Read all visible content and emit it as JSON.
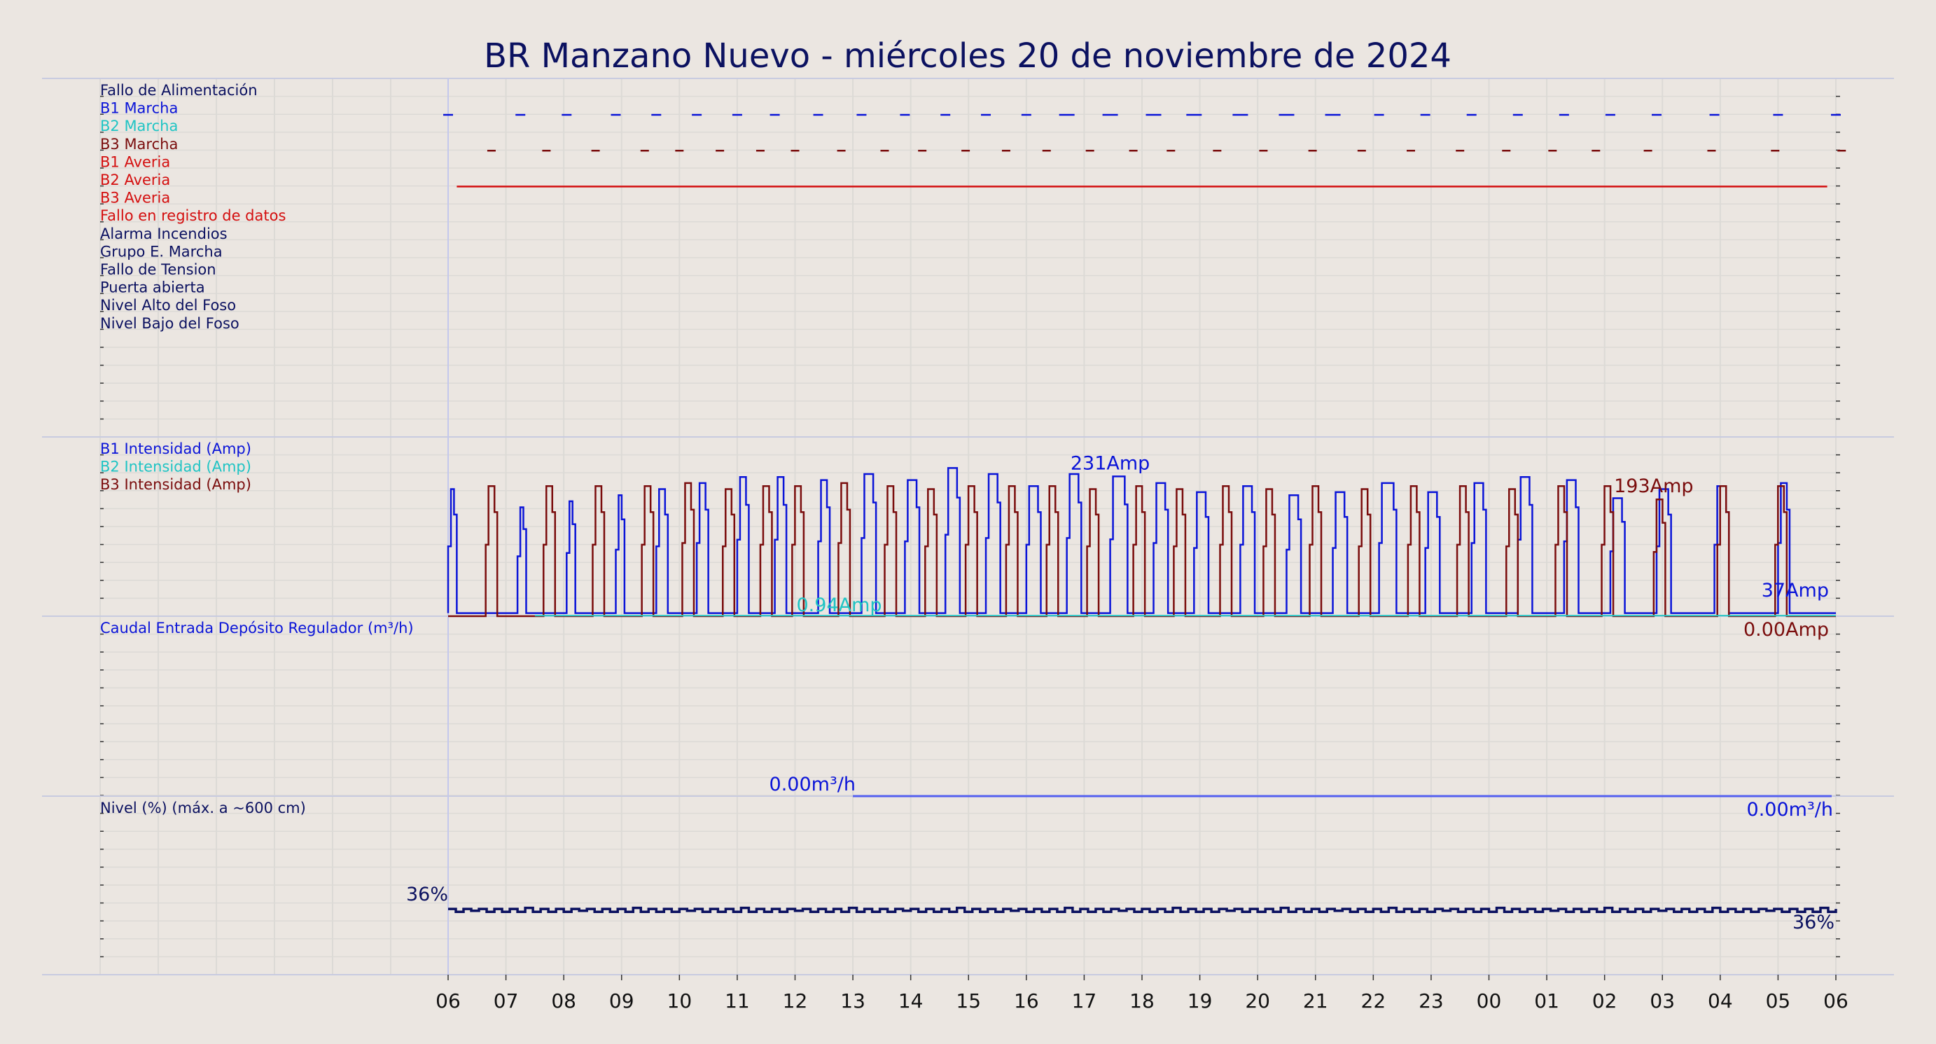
{
  "chart_data": {
    "type": "line",
    "title": "BR Manzano Nuevo   -   miércoles 20 de noviembre de 2024",
    "x_ticks": [
      "06",
      "07",
      "08",
      "09",
      "10",
      "11",
      "12",
      "13",
      "14",
      "15",
      "16",
      "17",
      "18",
      "19",
      "20",
      "21",
      "22",
      "23",
      "00",
      "01",
      "02",
      "03",
      "04",
      "05",
      "06"
    ],
    "x_range_hours": [
      0,
      24
    ],
    "colors": {
      "navy": "#0b1160",
      "blue": "#0a14d8",
      "cyan": "#20c4c4",
      "maroon": "#7a0c0c",
      "red": "#d40f0f",
      "flow": "#5560f0",
      "grid": "#dcdad6",
      "background": "#ebe6e1"
    },
    "panels": {
      "digital": {
        "labels": [
          {
            "text": "Fallo de Alimentación",
            "color": "navy"
          },
          {
            "text": "B1 Marcha",
            "color": "blue"
          },
          {
            "text": "B2 Marcha",
            "color": "cyan"
          },
          {
            "text": "B3 Marcha",
            "color": "maroon"
          },
          {
            "text": "B1 Averia",
            "color": "red"
          },
          {
            "text": "B2 Averia",
            "color": "red"
          },
          {
            "text": "B3 Averia",
            "color": "red"
          },
          {
            "text": "Fallo en registro de datos",
            "color": "red"
          },
          {
            "text": "Alarma Incendios",
            "color": "navy"
          },
          {
            "text": "Grupo E. Marcha",
            "color": "navy"
          },
          {
            "text": "Fallo de Tension",
            "color": "navy"
          },
          {
            "text": "Puerta abierta",
            "color": "navy"
          },
          {
            "text": "Nivel Alto del Foso",
            "color": "navy"
          },
          {
            "text": "Nivel Bajo del Foso",
            "color": "navy"
          }
        ],
        "b1_marcha_hours": [
          0.0,
          1.25,
          2.05,
          2.9,
          3.6,
          4.3,
          5.0,
          5.65,
          6.4,
          7.15,
          7.9,
          8.6,
          9.3,
          10.0,
          10.7,
          11.45,
          12.2,
          12.9,
          13.7,
          14.5,
          15.3,
          16.1,
          16.9,
          17.7,
          18.5,
          19.3,
          20.1,
          20.9,
          21.9,
          23.0,
          24.0
        ],
        "b3_marcha_hours": [
          0.75,
          1.7,
          2.55,
          3.4,
          4.0,
          4.7,
          5.4,
          6.0,
          6.8,
          7.55,
          8.2,
          8.95,
          9.65,
          10.35,
          11.1,
          11.85,
          12.5,
          13.3,
          14.1,
          14.95,
          15.8,
          16.65,
          17.5,
          18.3,
          19.1,
          19.85,
          20.75,
          21.85,
          22.95,
          24.1
        ],
        "b2_averia_span_hours": [
          0.15,
          23.85
        ]
      },
      "intensity": {
        "labels": [
          {
            "text": "B1 Intensidad (Amp)",
            "color": "blue"
          },
          {
            "text": "B2 Intensidad (Amp)",
            "color": "cyan"
          },
          {
            "text": "B3 Intensidad (Amp)",
            "color": "maroon"
          }
        ],
        "ylim": [
          0,
          250
        ],
        "b1_pulses": [
          [
            0.0,
            0.15,
            210
          ],
          [
            1.2,
            1.35,
            180
          ],
          [
            2.05,
            2.2,
            190
          ],
          [
            2.9,
            3.05,
            200
          ],
          [
            3.6,
            3.8,
            210
          ],
          [
            4.3,
            4.5,
            220
          ],
          [
            5.0,
            5.2,
            230
          ],
          [
            5.65,
            5.85,
            230
          ],
          [
            6.4,
            6.6,
            225
          ],
          [
            7.15,
            7.4,
            235
          ],
          [
            7.9,
            8.15,
            225
          ],
          [
            8.6,
            8.85,
            245
          ],
          [
            9.3,
            9.55,
            235
          ],
          [
            10.0,
            10.25,
            215
          ],
          [
            10.7,
            10.95,
            235
          ],
          [
            11.45,
            11.75,
            231
          ],
          [
            12.2,
            12.45,
            220
          ],
          [
            12.9,
            13.15,
            205
          ],
          [
            13.7,
            13.95,
            215
          ],
          [
            14.5,
            14.75,
            200
          ],
          [
            15.3,
            15.55,
            205
          ],
          [
            16.1,
            16.4,
            220
          ],
          [
            16.9,
            17.15,
            205
          ],
          [
            17.7,
            17.95,
            220
          ],
          [
            18.5,
            18.75,
            230
          ],
          [
            19.3,
            19.55,
            225
          ],
          [
            20.1,
            20.35,
            195
          ],
          [
            20.9,
            21.15,
            210
          ],
          [
            21.9,
            22.15,
            215
          ],
          [
            23.0,
            23.2,
            220
          ]
        ],
        "b3_pulses": [
          [
            0.65,
            0.85,
            215
          ],
          [
            1.65,
            1.85,
            215
          ],
          [
            2.5,
            2.7,
            215
          ],
          [
            3.35,
            3.55,
            215
          ],
          [
            4.05,
            4.25,
            220
          ],
          [
            4.75,
            4.95,
            210
          ],
          [
            5.4,
            5.6,
            215
          ],
          [
            5.95,
            6.15,
            215
          ],
          [
            6.75,
            6.95,
            220
          ],
          [
            7.55,
            7.75,
            215
          ],
          [
            8.25,
            8.45,
            210
          ],
          [
            8.95,
            9.15,
            215
          ],
          [
            9.65,
            9.85,
            215
          ],
          [
            10.35,
            10.55,
            215
          ],
          [
            11.05,
            11.25,
            210
          ],
          [
            11.85,
            12.05,
            215
          ],
          [
            12.55,
            12.75,
            210
          ],
          [
            13.35,
            13.55,
            215
          ],
          [
            14.1,
            14.3,
            210
          ],
          [
            14.9,
            15.1,
            215
          ],
          [
            15.75,
            15.95,
            210
          ],
          [
            16.6,
            16.8,
            215
          ],
          [
            17.45,
            17.65,
            215
          ],
          [
            18.3,
            18.5,
            210
          ],
          [
            19.15,
            19.35,
            215
          ],
          [
            19.95,
            20.15,
            215
          ],
          [
            20.85,
            21.05,
            193
          ],
          [
            21.95,
            22.15,
            215
          ],
          [
            22.95,
            23.15,
            215
          ]
        ],
        "annotations": [
          {
            "text": "231Amp",
            "color": "blue",
            "x": 11.45,
            "y": 231
          },
          {
            "text": "193Amp",
            "color": "maroon",
            "x": 20.85,
            "y": 193
          },
          {
            "text": "0.94Amp",
            "color": "cyan",
            "x": 6.0,
            "y": 0.94
          },
          {
            "text": "37Amp",
            "color": "blue",
            "x": 24.0,
            "y": 37
          },
          {
            "text": "0.00Amp",
            "color": "maroon",
            "x": 24.0,
            "y": 0
          }
        ],
        "b2_value": 0.94,
        "b2_span_hours": [
          1.5,
          6.0
        ]
      },
      "flow": {
        "labels": [
          {
            "text": "Caudal Entrada Depósito Regulador (m³/h)",
            "color": "blue"
          }
        ],
        "value": 0.0,
        "span_hours": [
          7.0,
          24.0
        ],
        "annotations": [
          {
            "text": "0.00m³/h",
            "color": "blue",
            "x": 6.3,
            "y": 0
          },
          {
            "text": "0.00m³/h",
            "color": "blue",
            "x": 24.0,
            "y": 0
          }
        ]
      },
      "level": {
        "labels": [
          {
            "text": "Nivel (%) (máx. a ~600 cm)",
            "color": "navy"
          }
        ],
        "ylim": [
          0,
          100
        ],
        "mean": 36,
        "annotations": [
          {
            "text": "36%",
            "color": "navy",
            "x": 0,
            "y": 36
          },
          {
            "text": "36%",
            "color": "navy",
            "x": 24,
            "y": 36
          }
        ]
      }
    }
  }
}
